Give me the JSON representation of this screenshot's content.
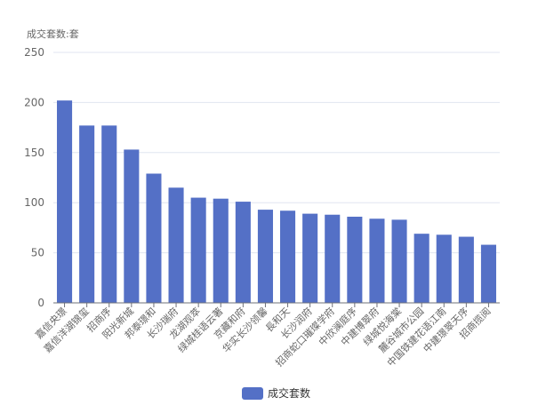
{
  "chart_data": {
    "type": "bar",
    "unit_label": "成交套数:套",
    "ylim": [
      0,
      250
    ],
    "yticks": [
      0,
      50,
      100,
      150,
      200,
      250
    ],
    "grid": true,
    "legend": "bottom-center",
    "series": [
      {
        "name": "成交套数",
        "color": "#5470c6",
        "values": [
          202,
          177,
          177,
          153,
          129,
          115,
          105,
          104,
          101,
          93,
          92,
          89,
          88,
          86,
          84,
          83,
          69,
          68,
          66,
          58
        ]
      }
    ],
    "categories": [
      "嘉信央璟",
      "嘉信洋湖锦玺",
      "招商序",
      "阳光新城",
      "邦泰璟和",
      "长沙瑞府",
      "龙湖观萃",
      "绿城桂语云著",
      "京藏和府",
      "华实长沙领馨",
      "長和天",
      "长沙润府",
      "招商蛇口璀璨学府",
      "中欣澜庭序",
      "中建博翠府",
      "绿城悦海棠",
      "麓谷城市公园",
      "中国铁建花语江南",
      "中建璟翠天序",
      "招商揽阅"
    ]
  }
}
